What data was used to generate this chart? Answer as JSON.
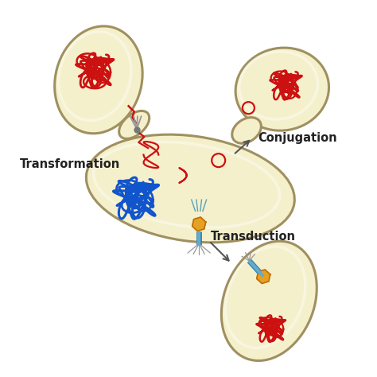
{
  "bg_color": "#ffffff",
  "cell_fill": "#f5f0cc",
  "cell_edge": "#a09060",
  "cell_edge_width": 2.2,
  "red_dna": "#cc1111",
  "blue_dna": "#1155cc",
  "phage_color": "#e8a020",
  "phage_edge": "#b87010",
  "pilus_color": "#999999",
  "arrow_color": "#555555",
  "label_transformation": "Transformation",
  "label_conjugation": "Conjugation",
  "label_transduction": "Transduction",
  "label_fontsize": 10.5,
  "label_color": "#222222"
}
